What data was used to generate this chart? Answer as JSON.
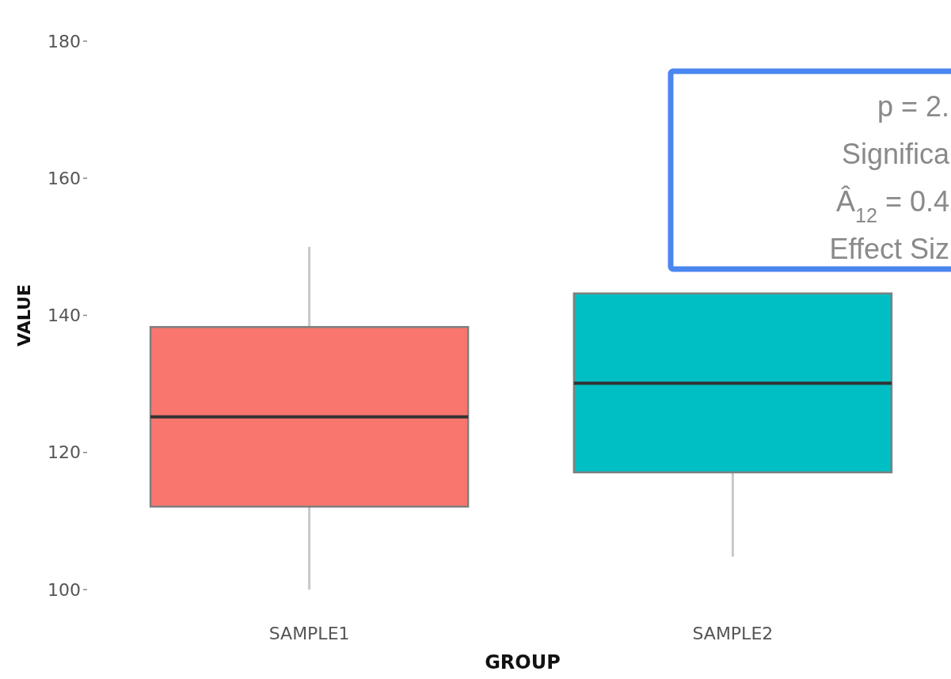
{
  "chart_data": {
    "type": "box",
    "xlabel": "GROUP",
    "ylabel": "VALUE",
    "categories": [
      "SAMPLE1",
      "SAMPLE2"
    ],
    "colors": [
      "#f8766d",
      "#00bfc4"
    ],
    "boxes": [
      {
        "low": 100,
        "q1": 112.1,
        "median": 125.2,
        "q3": 138.3,
        "high": 150
      },
      {
        "low": 104.8,
        "q1": 117.1,
        "median": 130.1,
        "q3": 143.2,
        "high": null
      }
    ],
    "ylim": [
      100,
      180
    ],
    "yticks": [
      100,
      120,
      140,
      160,
      180
    ],
    "grid": false,
    "annotations": [
      "p = 2.",
      "Significa",
      "Â$_{12}$ = 0.4",
      "Effect Siz"
    ]
  }
}
